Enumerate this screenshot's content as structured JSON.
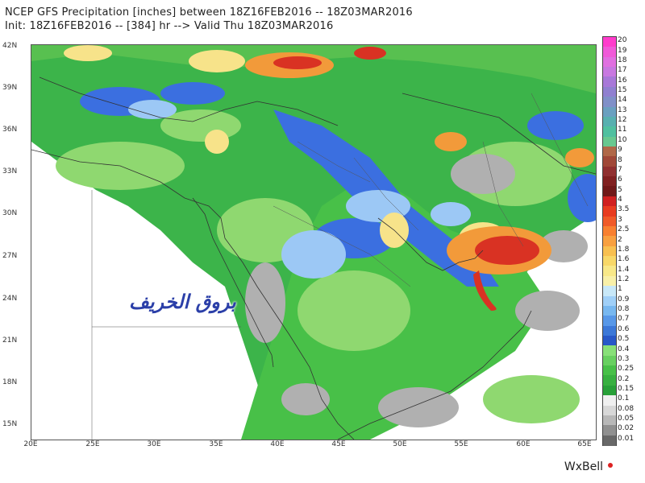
{
  "header": {
    "line1": "NCEP GFS Precipitation [inches] between 18Z16FEB2016 -- 18Z03MAR2016",
    "line2": "Init: 18Z16FEB2016 -- [384] hr --> Valid Thu 18Z03MAR2016"
  },
  "axes": {
    "lat_labels": [
      "42N",
      "39N",
      "36N",
      "33N",
      "30N",
      "27N",
      "24N",
      "21N",
      "18N",
      "15N"
    ],
    "lon_labels": [
      "20E",
      "25E",
      "30E",
      "35E",
      "40E",
      "45E",
      "50E",
      "55E",
      "60E",
      "65E"
    ]
  },
  "colorbar": {
    "levels": [
      "20",
      "19",
      "18",
      "17",
      "16",
      "15",
      "14",
      "13",
      "12",
      "11",
      "10",
      "9",
      "8",
      "7",
      "6",
      "5",
      "4",
      "3.5",
      "3",
      "2.5",
      "2",
      "1.8",
      "1.6",
      "1.4",
      "1.2",
      "1",
      "0.9",
      "0.8",
      "0.7",
      "0.6",
      "0.5",
      "0.4",
      "0.3",
      "0.25",
      "0.2",
      "0.15",
      "0.1",
      "0.08",
      "0.05",
      "0.02",
      "0.01"
    ],
    "colors": [
      "#ff3ccc",
      "#f05ad8",
      "#e070e0",
      "#c878e0",
      "#a878d8",
      "#9080d0",
      "#8090c8",
      "#6aa0c0",
      "#58b0b0",
      "#50c0a0",
      "#68c890",
      "#b06848",
      "#a04838",
      "#903030",
      "#802020",
      "#701818",
      "#d02020",
      "#e83c20",
      "#f05a28",
      "#f88030",
      "#f8a040",
      "#f8c050",
      "#f8d868",
      "#f8e888",
      "#f8f0a8",
      "#c8e8f8",
      "#a0d0f8",
      "#78b8f0",
      "#5898e8",
      "#3c78d8",
      "#2858c8",
      "#88e078",
      "#68d060",
      "#48c048",
      "#38b040",
      "#28a038",
      "#f0f0f0",
      "#d8d8d8",
      "#b8b8b8",
      "#909090",
      "#686868"
    ]
  },
  "overlay": {
    "watermark": "بروق الخريف",
    "brand": "WxBell"
  },
  "palette": {
    "land_green": "#3cb44a",
    "light_green": "#8fd870",
    "blue": "#3b6fe0",
    "light_blue": "#9cc8f5",
    "gray": "#b0b0b0",
    "yellow": "#f7e38a",
    "orange": "#f29a3a",
    "red": "#d93223"
  }
}
